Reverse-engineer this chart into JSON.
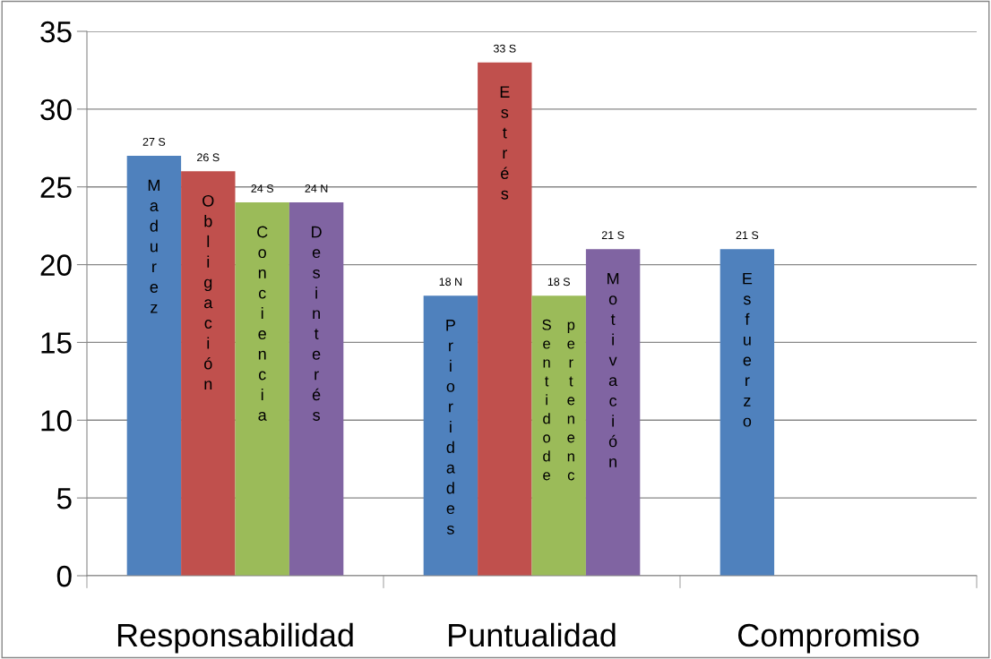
{
  "chart_data": {
    "type": "bar",
    "categories": [
      "Responsabilidad",
      "Puntualidad",
      "Compromiso"
    ],
    "series": [
      {
        "color": "#4f81bd",
        "values": [
          27,
          18,
          21
        ],
        "value_labels": [
          "27 S",
          "18 N",
          "21 S"
        ]
      },
      {
        "color": "#c0504d",
        "values": [
          26,
          33,
          null
        ],
        "value_labels": [
          "26 S",
          "33 S",
          null
        ]
      },
      {
        "color": "#9bbb59",
        "values": [
          24,
          18,
          null
        ],
        "value_labels": [
          "24 S",
          "18 S",
          null
        ]
      },
      {
        "color": "#8064a2",
        "values": [
          24,
          21,
          null
        ],
        "value_labels": [
          "24 N",
          "21 S",
          null
        ]
      }
    ],
    "annotations": [
      "Madurez",
      "Obligación",
      "Conciencia",
      "Desinterés",
      "Prioridades",
      "Estrés",
      "Sentidode\npertenenc",
      "Motivación",
      "Esfuerzo"
    ],
    "ylim": [
      0,
      35
    ],
    "yticks": [
      0,
      5,
      10,
      15,
      20,
      25,
      30,
      35
    ],
    "grid": "y"
  }
}
